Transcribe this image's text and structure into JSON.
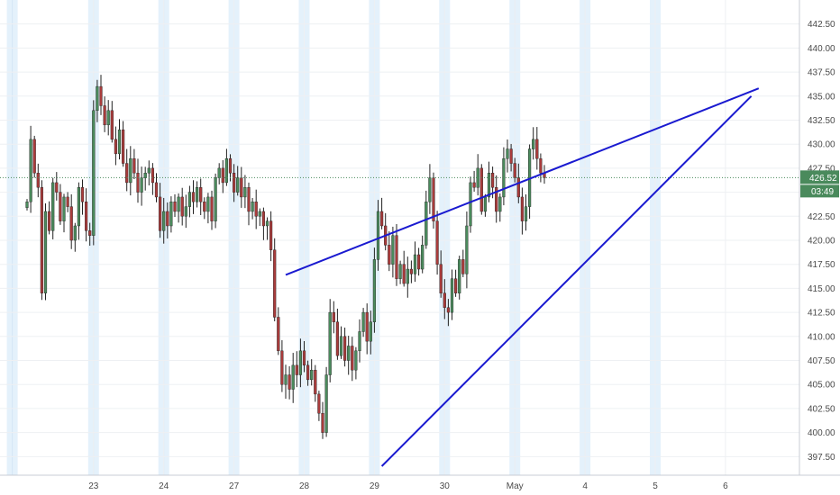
{
  "chart_data": {
    "type": "candlestick",
    "title": "",
    "xlabel": "",
    "ylabel": "",
    "ylim": [
      396.5,
      443.5
    ],
    "grid": true,
    "y_ticks": [
      "442.50",
      "440.00",
      "437.50",
      "435.00",
      "432.50",
      "430.00",
      "427.50",
      "425.00",
      "422.50",
      "420.00",
      "417.50",
      "415.00",
      "412.50",
      "410.00",
      "407.50",
      "405.00",
      "402.50",
      "400.00",
      "397.50"
    ],
    "x_ticks": [
      {
        "label": "23",
        "bar": 18
      },
      {
        "label": "24",
        "bar": 37
      },
      {
        "label": "27",
        "bar": 56
      },
      {
        "label": "28",
        "bar": 75
      },
      {
        "label": "29",
        "bar": 94
      },
      {
        "label": "30",
        "bar": 113
      },
      {
        "label": "May",
        "bar": 132
      },
      {
        "label": "4",
        "bar": 151
      },
      {
        "label": "5",
        "bar": 170
      },
      {
        "label": "6",
        "bar": 189
      }
    ],
    "session_bands": [
      -4,
      18,
      37,
      56,
      75,
      94,
      113,
      132,
      151,
      170
    ],
    "up_color": "#4a8a5c",
    "down_color": "#a83b3b",
    "closes": [
      424.0,
      430.5,
      427.0,
      425.5,
      414.5,
      423.0,
      421.0,
      426.0,
      425.0,
      422.0,
      424.5,
      423.5,
      420.0,
      421.5,
      425.5,
      424.0,
      421.0,
      420.5,
      433.5,
      436.0,
      434.0,
      432.0,
      433.5,
      430.5,
      429.0,
      431.5,
      428.0,
      426.0,
      428.5,
      427.0,
      425.0,
      426.5,
      427.0,
      427.5,
      426.0,
      424.5,
      421.0,
      423.0,
      421.5,
      424.0,
      423.0,
      424.5,
      422.5,
      423.5,
      425.0,
      424.0,
      425.5,
      424.0,
      423.0,
      424.5,
      422.0,
      426.5,
      427.5,
      426.0,
      428.5,
      427.0,
      425.0,
      426.5,
      424.5,
      425.5,
      423.0,
      424.0,
      422.5,
      423.0,
      421.5,
      422.0,
      419.0,
      412.0,
      408.5,
      405.0,
      406.0,
      404.5,
      407.0,
      406.0,
      408.5,
      407.0,
      405.5,
      406.5,
      404.0,
      402.0,
      400.0,
      406.0,
      412.5,
      411.5,
      408.0,
      410.0,
      407.5,
      409.0,
      406.5,
      408.5,
      410.5,
      412.5,
      409.5,
      411.5,
      418.0,
      423.0,
      421.5,
      419.5,
      417.5,
      420.5,
      416.0,
      417.5,
      415.5,
      417.0,
      416.5,
      418.5,
      417.0,
      419.5,
      424.0,
      426.5,
      422.0,
      417.5,
      414.5,
      413.0,
      412.5,
      416.0,
      414.5,
      418.0,
      416.5,
      421.5,
      426.0,
      425.5,
      427.5,
      423.0,
      424.5,
      427.0,
      425.5,
      423.0,
      424.5,
      428.5,
      429.5,
      428.0,
      426.5,
      424.5,
      422.0,
      423.5,
      429.5,
      430.5,
      428.5,
      427.0,
      426.5
    ],
    "current_price": "426.52",
    "countdown": "03:49",
    "trendlines": [
      {
        "name": "upper-resistance",
        "color": "#1a1ad0",
        "from": {
          "bar": 70,
          "y": 416.4
        },
        "to": {
          "bar": 198,
          "y": 435.8
        }
      },
      {
        "name": "lower-support",
        "color": "#1a1ad0",
        "from": {
          "bar": 96,
          "y": 396.5
        },
        "to": {
          "bar": 196,
          "y": 435.0
        }
      }
    ]
  }
}
